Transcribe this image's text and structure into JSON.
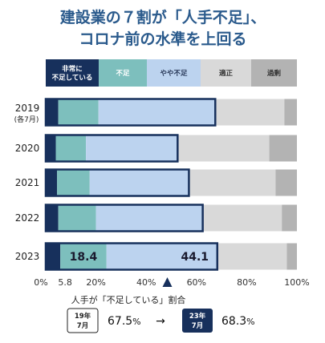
{
  "chart_data": {
    "type": "bar",
    "orientation": "horizontal",
    "stacked": true,
    "title_lines": [
      "建設業の７割が「人手不足」、",
      "コロナ前の水準を上回る"
    ],
    "categories": [
      "2019",
      "2020",
      "2021",
      "2022",
      "2023"
    ],
    "category_sublabels": [
      "(各7月)",
      "",
      "",
      "",
      ""
    ],
    "series": [
      {
        "name": "非常に不足している",
        "color": "#17305c",
        "values": [
          5.0,
          4.0,
          4.5,
          5.0,
          5.8
        ]
      },
      {
        "name": "不足",
        "color": "#7dbfbd",
        "values": [
          16.0,
          12.0,
          13.0,
          15.0,
          18.4
        ]
      },
      {
        "name": "やや不足",
        "color": "#bcd3ef",
        "values": [
          46.5,
          36.5,
          39.5,
          42.5,
          44.1
        ]
      },
      {
        "name": "適正",
        "color": "#d9d9d9",
        "values": [
          27.5,
          36.5,
          34.5,
          31.5,
          27.7
        ]
      },
      {
        "name": "過剰",
        "color": "#b3b3b3",
        "values": [
          5.0,
          11.0,
          8.5,
          6.0,
          4.0
        ]
      }
    ],
    "legend_lines": [
      [
        "非常に",
        "不足している"
      ],
      [
        "不足"
      ],
      [
        "やや不足"
      ],
      [
        "適正"
      ],
      [
        "過剰"
      ]
    ],
    "data_labels": {
      "row": "2023",
      "values": [
        "5.8",
        "18.4",
        "44.1"
      ]
    },
    "xlim": [
      0,
      100
    ],
    "xticks": [
      "0%",
      "20%",
      "40%",
      "60%",
      "80%",
      "100%"
    ],
    "tick_values": [
      0,
      20,
      40,
      60,
      80,
      100
    ],
    "grid": false,
    "legend_position": "top",
    "highlight_color": "#17305c",
    "marker_value": 50
  },
  "note": {
    "label": "人手が「不足している」割合",
    "badge_2019": [
      "19年",
      "7月"
    ],
    "value_2019": "67.5",
    "arrow": "→",
    "badge_2023": [
      "23年",
      "7月"
    ],
    "value_2023": "68.3",
    "unit": "%"
  }
}
